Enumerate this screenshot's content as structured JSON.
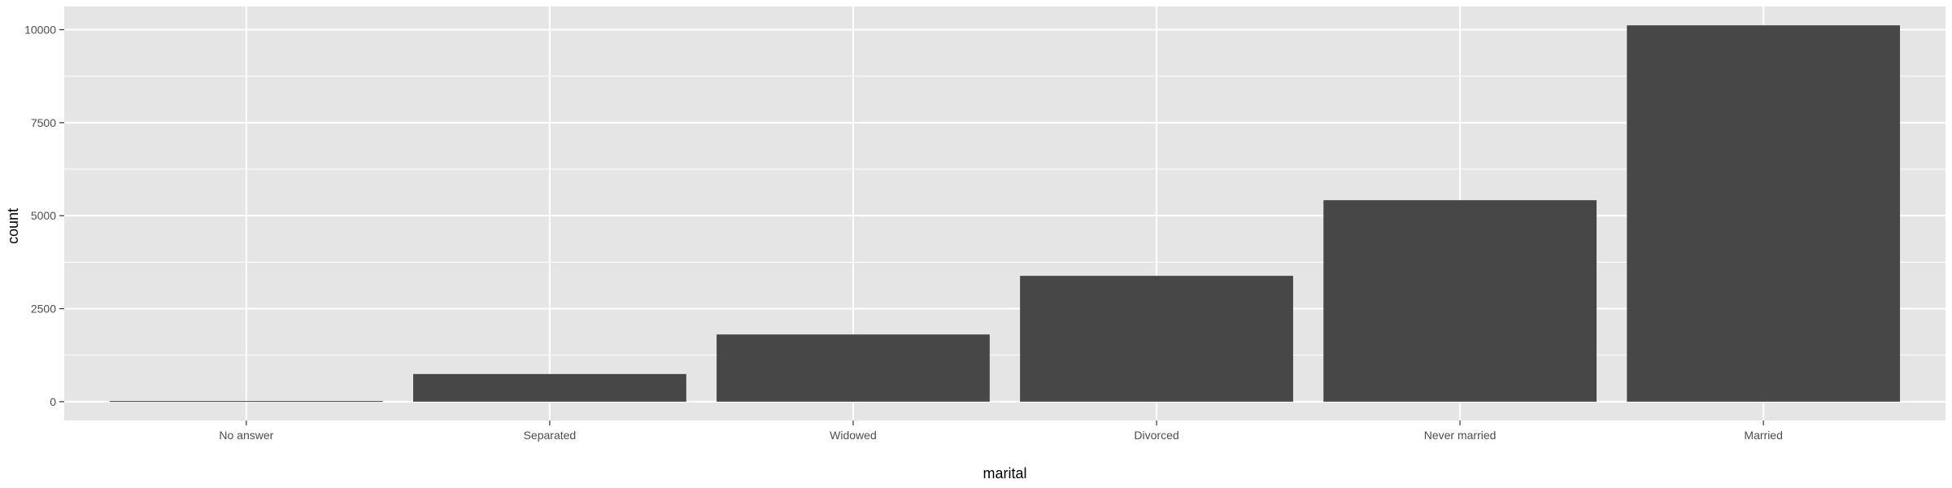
{
  "chart_data": {
    "type": "bar",
    "categories": [
      "No answer",
      "Separated",
      "Widowed",
      "Divorced",
      "Never married",
      "Married"
    ],
    "values": [
      17,
      743,
      1807,
      3383,
      5416,
      10117
    ],
    "xlabel": "marital",
    "ylabel": "count",
    "ylim": [
      -506,
      10623
    ],
    "yticks": [
      0,
      2500,
      5000,
      7500,
      10000
    ],
    "grid": true,
    "colors": {
      "panel_background": "#e5e5e5",
      "grid_line": "#ffffff",
      "bar_fill": "#474747",
      "tick_text": "#4d4d4d"
    }
  }
}
